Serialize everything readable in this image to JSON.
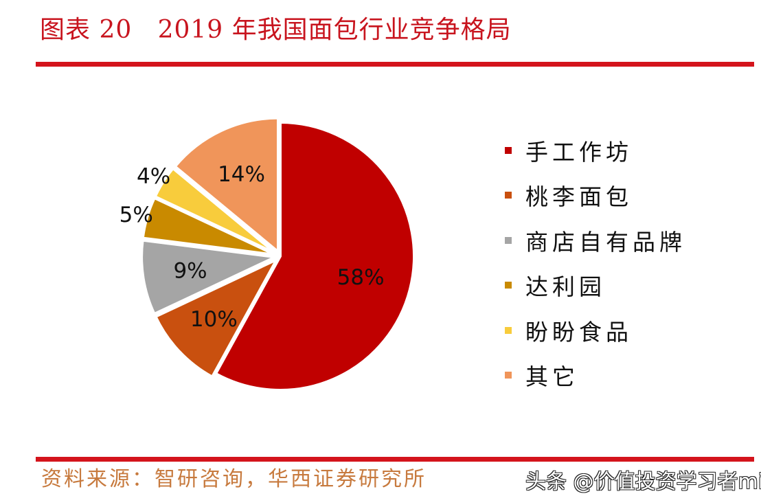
{
  "title": "图表 20   2019 年我国面包行业竞争格局",
  "source": "资料来源：智研咨询，华西证券研究所",
  "watermark": "头条 @价值投资学习者miki",
  "chart_data": {
    "type": "pie",
    "start_angle": "12 o'clock",
    "direction": "clockwise",
    "legend_position": "right",
    "categories": [
      "手工作坊",
      "桃李面包",
      "商店自有品牌",
      "达利园",
      "盼盼食品",
      "其它"
    ],
    "values": [
      58,
      10,
      9,
      5,
      4,
      14
    ],
    "labels": [
      "58%",
      "10%",
      "9%",
      "5%",
      "4%",
      "14%"
    ],
    "colors": [
      "#c00000",
      "#c9500f",
      "#a5a5a5",
      "#c98a00",
      "#f8cc3c",
      "#f0955a"
    ]
  }
}
